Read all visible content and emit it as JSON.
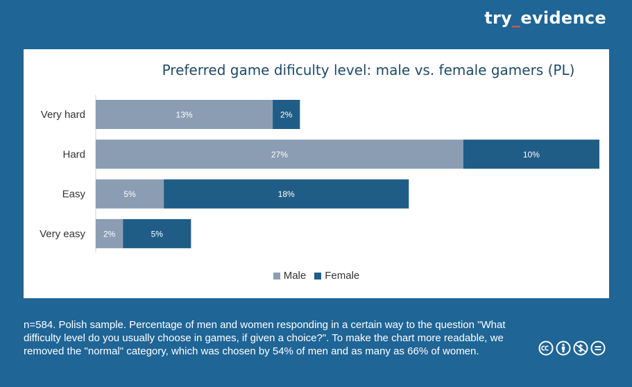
{
  "brand": {
    "part1": "try",
    "sep": "_",
    "part2": "evidence"
  },
  "chart_data": {
    "type": "bar",
    "orientation": "horizontal",
    "stacked": true,
    "title": "Preferred game dificulty level: male vs. female gamers (PL)",
    "categories": [
      "Very hard",
      "Hard",
      "Easy",
      "Very easy"
    ],
    "series": [
      {
        "name": "Male",
        "values": [
          13,
          27,
          5,
          2
        ],
        "labels": [
          "13%",
          "27%",
          "5%",
          "2%"
        ],
        "color": "#8b9db2"
      },
      {
        "name": "Female",
        "values": [
          2,
          10,
          18,
          5
        ],
        "labels": [
          "2%",
          "10%",
          "18%",
          "5%"
        ],
        "color": "#1f5d87"
      }
    ],
    "xlim": [
      0,
      37
    ],
    "legend": "bottom",
    "grid": false
  },
  "footnote": "n=584. Polish sample. Percentage of men and women responding in a certain way to the question \"What difficulty level do you usually choose in games, if given a choice?\". To make the chart more readable, we removed the \"normal\" category, which was chosen by 54% of men and as many as 66% of women.",
  "license_icons": [
    "cc-icon",
    "by-icon",
    "nc-icon",
    "nd-icon"
  ]
}
